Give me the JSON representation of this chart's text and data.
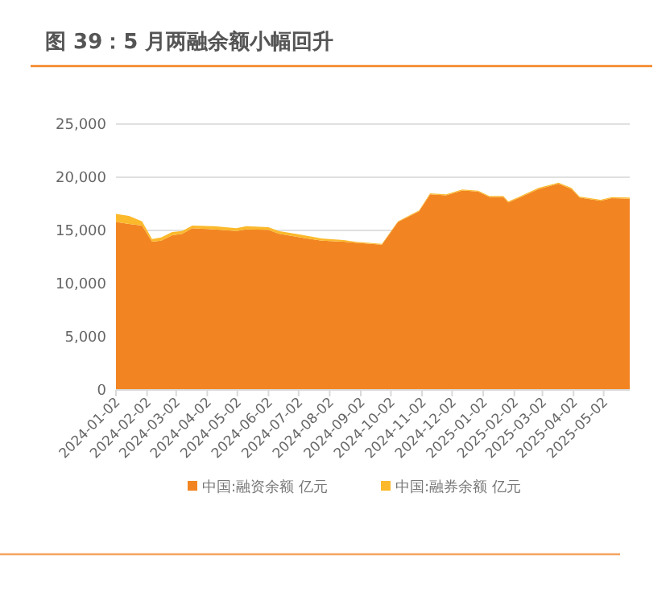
{
  "chart_data": {
    "type": "area",
    "stacked": true,
    "title": "图 39：5 月两融余额小幅回升",
    "x": [
      "2024-01-02",
      "2024-01-15",
      "2024-01-28",
      "2024-02-07",
      "2024-02-16",
      "2024-02-27",
      "2024-03-08",
      "2024-03-18",
      "2024-04-09",
      "2024-05-01",
      "2024-05-11",
      "2024-06-02",
      "2024-06-12",
      "2024-07-04",
      "2024-07-25",
      "2024-08-16",
      "2024-08-27",
      "2024-09-23",
      "2024-10-09",
      "2024-10-30",
      "2024-11-10",
      "2024-11-26",
      "2024-12-12",
      "2024-12-28",
      "2025-01-08",
      "2025-01-22",
      "2025-01-27",
      "2025-02-05",
      "2025-02-26",
      "2025-03-18",
      "2025-03-31",
      "2025-04-08",
      "2025-04-29",
      "2025-05-10",
      "2025-05-28"
    ],
    "series": [
      {
        "name": "中国:融资余额 亿元",
        "color": "#f28522",
        "values": [
          15800,
          15600,
          15450,
          13940,
          14040,
          14550,
          14680,
          15200,
          15100,
          14950,
          15100,
          15050,
          14700,
          14340,
          14040,
          13940,
          13840,
          13660,
          15790,
          16790,
          18390,
          18300,
          18750,
          18650,
          18140,
          18140,
          17640,
          17990,
          18890,
          19390,
          18890,
          18080,
          17780,
          18030,
          17980
        ]
      },
      {
        "name": "中国:融券余额 亿元",
        "color": "#fbb92b",
        "values": [
          760,
          760,
          410,
          250,
          300,
          300,
          270,
          250,
          300,
          250,
          300,
          250,
          250,
          260,
          200,
          150,
          100,
          80,
          70,
          80,
          90,
          90,
          90,
          90,
          90,
          90,
          90,
          90,
          100,
          100,
          100,
          100,
          100,
          100,
          100
        ]
      }
    ],
    "xlim": [
      "2024-01-02",
      "2025-05-28"
    ],
    "xticks": [
      "2024-01-02",
      "2024-02-02",
      "2024-03-02",
      "2024-04-02",
      "2024-05-02",
      "2024-06-02",
      "2024-07-02",
      "2024-08-02",
      "2024-09-02",
      "2024-10-02",
      "2024-11-02",
      "2024-12-02",
      "2025-01-02",
      "2025-02-02",
      "2025-03-02",
      "2025-04-02",
      "2025-05-02"
    ],
    "ylim": [
      0,
      25000
    ],
    "yticks": [
      0,
      {
        "value": 5000,
        "label": "5,000"
      },
      {
        "value": 10000,
        "label": "10,000"
      },
      {
        "value": 15000,
        "label": "15,000"
      },
      {
        "value": 20000,
        "label": "20,000"
      },
      {
        "value": 25000,
        "label": "25,000"
      }
    ],
    "grid": "y",
    "legend": "bottom"
  }
}
